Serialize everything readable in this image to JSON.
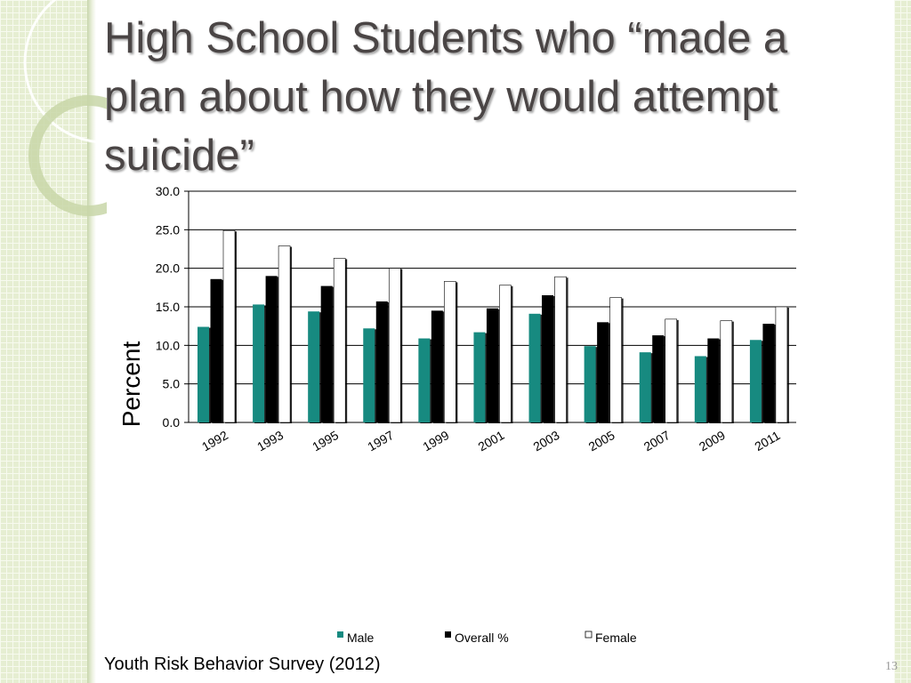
{
  "slide": {
    "title": "High School Students who “made a plan about how they would attempt suicide”",
    "source": "Youth Risk Behavior Survey (2012)",
    "page_number": "13"
  },
  "colors": {
    "male": "#178a80",
    "overall": "#000000",
    "female": "#ffffff",
    "title": "#4a4545"
  },
  "chart_data": {
    "type": "bar",
    "categories": [
      "1992",
      "1993",
      "1995",
      "1997",
      "1999",
      "2001",
      "2003",
      "2005",
      "2007",
      "2009",
      "2011"
    ],
    "series": [
      {
        "name": "Male",
        "values": [
          12.4,
          15.3,
          14.4,
          12.2,
          10.9,
          11.7,
          14.1,
          9.9,
          9.1,
          8.6,
          10.7
        ]
      },
      {
        "name": "Overall %",
        "values": [
          18.6,
          19.0,
          17.7,
          15.7,
          14.5,
          14.8,
          16.5,
          13.0,
          11.3,
          10.9,
          12.8
        ]
      },
      {
        "name": "Female",
        "values": [
          24.9,
          22.9,
          21.3,
          20.0,
          18.3,
          17.8,
          18.9,
          16.2,
          13.4,
          13.2,
          15.0
        ]
      }
    ],
    "yticks": [
      "0.0",
      "5.0",
      "10.0",
      "15.0",
      "20.0",
      "25.0",
      "30.0"
    ],
    "ylim": [
      0,
      30
    ],
    "ylabel": "Percent",
    "xlabel": "",
    "grid": true,
    "legend_position": "bottom"
  }
}
